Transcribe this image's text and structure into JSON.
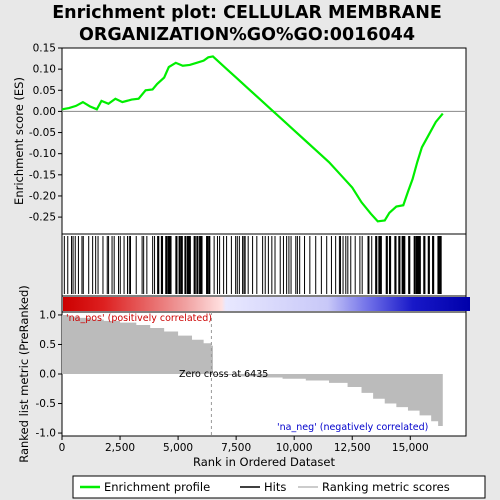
{
  "chart_data": {
    "type": "line",
    "title_line1": "Enrichment plot: CELLULAR MEMBRANE",
    "title_line2": "ORGANIZATION%GO%GO:0016044",
    "es_panel": {
      "ylabel": "Enrichment score (ES)",
      "ylim": [
        -0.29,
        0.15
      ],
      "yticks": [
        "0.15",
        "0.10",
        "0.05",
        "0.00",
        "-0.05",
        "-0.10",
        "-0.15",
        "-0.20",
        "-0.25"
      ],
      "ytick_values": [
        0.15,
        0.1,
        0.05,
        0.0,
        -0.05,
        -0.1,
        -0.15,
        -0.2,
        -0.25
      ],
      "series": [
        {
          "name": "Enrichment profile",
          "color": "#00ee00",
          "x": [
            0,
            300,
            600,
            900,
            1200,
            1500,
            1700,
            2000,
            2300,
            2600,
            3000,
            3300,
            3600,
            3900,
            4100,
            4400,
            4600,
            4900,
            5200,
            5500,
            5800,
            6100,
            6300,
            6500,
            6800,
            7100,
            7500,
            8000,
            8500,
            9000,
            9500,
            10000,
            10500,
            11000,
            11500,
            12000,
            12500,
            12900,
            13300,
            13600,
            13900,
            14100,
            14400,
            14700,
            14900,
            15100,
            15300,
            15500,
            15800,
            16100,
            16400
          ],
          "y": [
            0.005,
            0.008,
            0.013,
            0.022,
            0.012,
            0.005,
            0.025,
            0.018,
            0.03,
            0.022,
            0.028,
            0.03,
            0.05,
            0.052,
            0.065,
            0.08,
            0.105,
            0.115,
            0.108,
            0.11,
            0.115,
            0.12,
            0.128,
            0.13,
            0.115,
            0.1,
            0.08,
            0.055,
            0.03,
            0.005,
            -0.02,
            -0.045,
            -0.07,
            -0.095,
            -0.12,
            -0.15,
            -0.18,
            -0.215,
            -0.242,
            -0.26,
            -0.258,
            -0.24,
            -0.225,
            -0.222,
            -0.19,
            -0.16,
            -0.12,
            -0.085,
            -0.055,
            -0.025,
            -0.005
          ]
        }
      ]
    },
    "hits_panel": {
      "legend_label": "Hits",
      "color": "#000000"
    },
    "ranked_panel": {
      "ylabel": "Ranked list metric (PreRanked)",
      "xlabel": "Rank in Ordered Dataset",
      "ylim": [
        -1.05,
        1.05
      ],
      "yticks": [
        "1.0",
        "0.5",
        "0.0",
        "-0.5",
        "-1.0"
      ],
      "ytick_values": [
        1.0,
        0.5,
        0.0,
        -0.5,
        -1.0
      ],
      "xlim": [
        0,
        17400
      ],
      "xticks": [
        "0",
        "2,500",
        "5,000",
        "7,500",
        "10,000",
        "12,500",
        "15,000"
      ],
      "xtick_values": [
        0,
        2500,
        5000,
        7500,
        10000,
        12500,
        15000
      ],
      "legend_label": "Ranking metric scores",
      "color": "#bbbbbb",
      "rank_x": [
        0,
        300,
        700,
        1200,
        1800,
        2500,
        3200,
        3800,
        4400,
        5000,
        5600,
        6100,
        6435,
        6500,
        7500,
        8500,
        9500,
        10500,
        11500,
        12300,
        12900,
        13400,
        13900,
        14400,
        14900,
        15400,
        15900,
        16200,
        16400
      ],
      "rank_y": [
        1.0,
        0.97,
        0.95,
        0.92,
        0.9,
        0.87,
        0.83,
        0.78,
        0.72,
        0.65,
        0.58,
        0.52,
        0.48,
        -0.02,
        -0.04,
        -0.06,
        -0.08,
        -0.11,
        -0.15,
        -0.22,
        -0.32,
        -0.42,
        -0.5,
        -0.56,
        -0.62,
        -0.7,
        -0.8,
        -0.88,
        -1.0
      ],
      "zero_cross_label": "Zero cross at 6435",
      "zero_cross_x": 6435,
      "pos_label": "'na_pos' (positively correlated)",
      "neg_label": "'na_neg' (negatively correlated)",
      "pos_color": "#cc0000",
      "neg_color": "#0000cc"
    },
    "legend_placement": "bottom",
    "grid": false
  },
  "legend": {
    "enrichment": "Enrichment profile",
    "hits": "Hits",
    "ranking": "Ranking metric scores"
  }
}
